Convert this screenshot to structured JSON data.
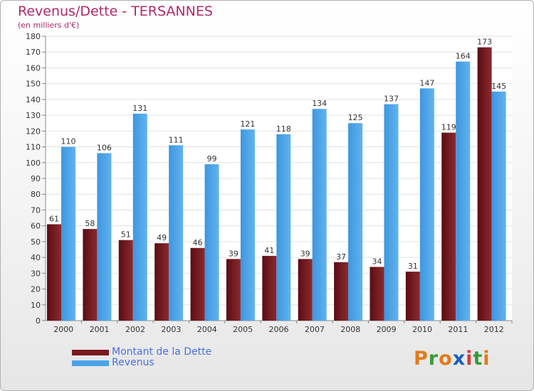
{
  "chart_data": {
    "type": "bar",
    "title": "Revenus/Dette - TERSANNES",
    "subtitle": "(en milliers d'€)",
    "categories": [
      "2000",
      "2001",
      "2002",
      "2003",
      "2004",
      "2005",
      "2006",
      "2007",
      "2008",
      "2009",
      "2010",
      "2011",
      "2012"
    ],
    "series": [
      {
        "name": "Montant de la Dette",
        "color": "#7a1a1f",
        "values": [
          61,
          58,
          51,
          49,
          46,
          39,
          41,
          39,
          37,
          34,
          31,
          119,
          173
        ]
      },
      {
        "name": "Revenus",
        "color": "#4aa3e8",
        "values": [
          110,
          106,
          131,
          111,
          99,
          121,
          118,
          134,
          125,
          137,
          147,
          164,
          145
        ]
      }
    ],
    "ylim": [
      0,
      180
    ],
    "ytick_step": 10,
    "grid": true,
    "legend_position": "bottom-left"
  },
  "logo": {
    "text": "Proxiti",
    "colors": [
      "#e07b1a",
      "#3a9a3a",
      "#e07b1a",
      "#1a5fc0",
      "#d93a3a",
      "#3a9a3a",
      "#e07b1a"
    ]
  }
}
